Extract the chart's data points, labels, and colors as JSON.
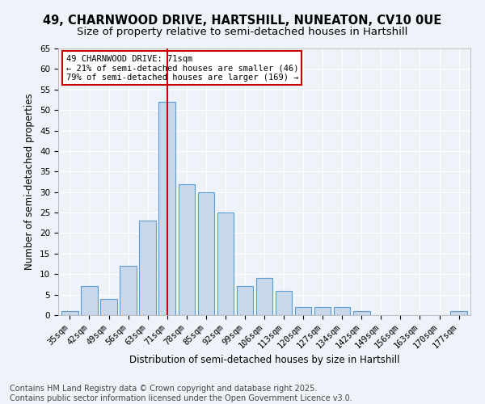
{
  "title": "49, CHARNWOOD DRIVE, HARTSHILL, NUNEATON, CV10 0UE",
  "subtitle": "Size of property relative to semi-detached houses in Hartshill",
  "xlabel": "Distribution of semi-detached houses by size in Hartshill",
  "ylabel": "Number of semi-detached properties",
  "categories": [
    "35sqm",
    "42sqm",
    "49sqm",
    "56sqm",
    "63sqm",
    "71sqm",
    "78sqm",
    "85sqm",
    "92sqm",
    "99sqm",
    "106sqm",
    "113sqm",
    "120sqm",
    "127sqm",
    "134sqm",
    "142sqm",
    "149sqm",
    "156sqm",
    "163sqm",
    "170sqm",
    "177sqm"
  ],
  "values": [
    1,
    7,
    4,
    12,
    23,
    52,
    32,
    30,
    25,
    7,
    9,
    6,
    2,
    2,
    2,
    1,
    0,
    0,
    0,
    0,
    1
  ],
  "bar_color": "#c8d8e8",
  "bar_edge_color": "#5b9bd5",
  "highlight_line_color": "#cc0000",
  "annotation_line1": "49 CHARNWOOD DRIVE: 71sqm",
  "annotation_line2": "← 21% of semi-detached houses are smaller (46)",
  "annotation_line3": "79% of semi-detached houses are larger (169) →",
  "annotation_box_color": "#cc0000",
  "ylim": [
    0,
    65
  ],
  "yticks": [
    0,
    5,
    10,
    15,
    20,
    25,
    30,
    35,
    40,
    45,
    50,
    55,
    60,
    65
  ],
  "footer_line1": "Contains HM Land Registry data © Crown copyright and database right 2025.",
  "footer_line2": "Contains public sector information licensed under the Open Government Licence v3.0.",
  "background_color": "#edf3f8",
  "plot_background_color": "#edf3f8",
  "grid_color": "#ffffff",
  "title_fontsize": 10.5,
  "subtitle_fontsize": 9.5,
  "axis_label_fontsize": 8.5,
  "tick_fontsize": 7.5,
  "footer_fontsize": 7.0,
  "annotation_fontsize": 7.5
}
